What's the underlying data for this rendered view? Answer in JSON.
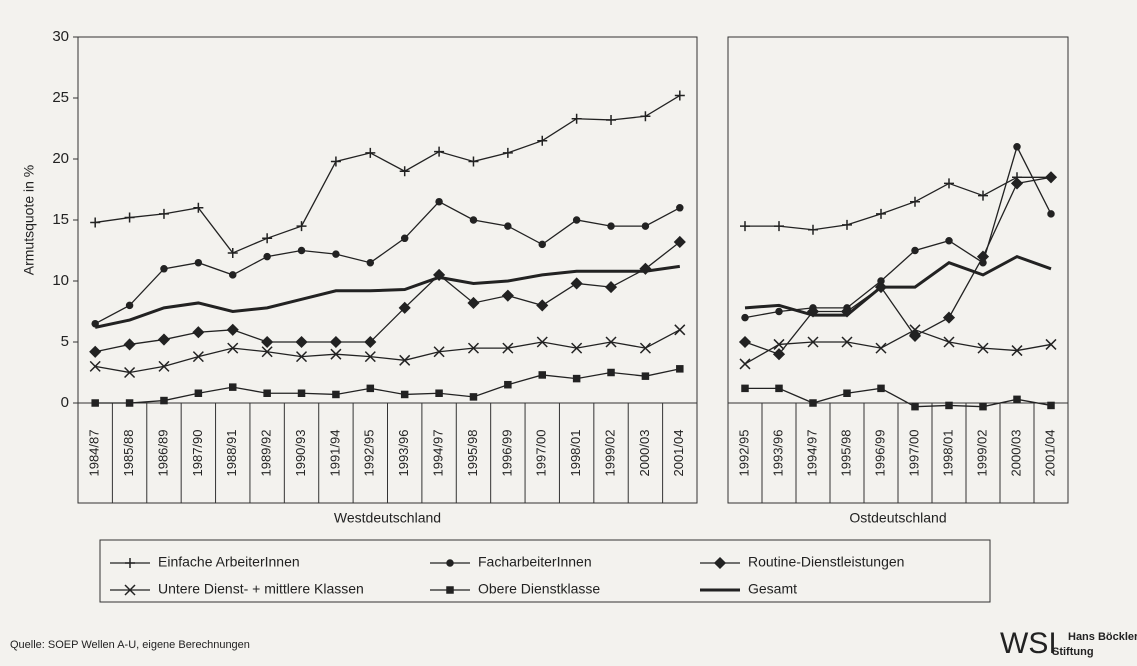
{
  "chart_data": [
    {
      "type": "line",
      "ylabel": "Armutsquote in %",
      "xlabel": "Westdeutschland",
      "categories": [
        "1984/87",
        "1985/88",
        "1986/89",
        "1987/90",
        "1988/91",
        "1989/92",
        "1990/93",
        "1991/94",
        "1992/95",
        "1993/96",
        "1994/97",
        "1995/98",
        "1996/99",
        "1997/00",
        "1998/01",
        "1999/02",
        "2000/03",
        "2001/04"
      ],
      "ylim": [
        0,
        30
      ],
      "yticks": [
        0,
        5,
        10,
        15,
        20,
        25,
        30
      ],
      "series": [
        {
          "name": "Einfache ArbeiterInnen",
          "color": "#222222",
          "marker": "plus",
          "values": [
            14.8,
            15.2,
            15.5,
            16,
            12.3,
            13.5,
            14.5,
            19.8,
            20.5,
            19,
            20.6,
            19.8,
            20.5,
            21.5,
            23.3,
            23.2,
            23.5,
            25.2
          ]
        },
        {
          "name": "FacharbeiterInnen",
          "color": "#222222",
          "marker": "dot",
          "values": [
            6.5,
            8,
            11,
            11.5,
            10.5,
            12,
            12.5,
            12.2,
            11.5,
            13.5,
            16.5,
            15,
            14.5,
            13,
            15,
            14.5,
            14.5,
            16
          ]
        },
        {
          "name": "Routine-Dienstleistungen",
          "color": "#222222",
          "marker": "diamond",
          "values": [
            4.2,
            4.8,
            5.2,
            5.8,
            6,
            5,
            5,
            5,
            5,
            7.8,
            10.5,
            8.2,
            8.8,
            8,
            9.8,
            9.5,
            11,
            13.2
          ]
        },
        {
          "name": "Untere Dienst- + mittlere Klassen",
          "color": "#222222",
          "marker": "x",
          "values": [
            3,
            2.5,
            3,
            3.8,
            4.5,
            4.2,
            3.8,
            4,
            3.8,
            3.5,
            4.2,
            4.5,
            4.5,
            5,
            4.5,
            5,
            4.5,
            6
          ]
        },
        {
          "name": "Obere Dienstklasse",
          "color": "#222222",
          "marker": "square",
          "values": [
            0,
            0,
            0.2,
            0.8,
            1.3,
            0.8,
            0.8,
            0.7,
            1.2,
            0.7,
            0.8,
            0.5,
            1.5,
            2.3,
            2,
            2.5,
            2.2,
            2.8
          ]
        },
        {
          "name": "Gesamt",
          "color": "#222222",
          "marker": "none",
          "values": [
            6.2,
            6.8,
            7.8,
            8.2,
            7.5,
            7.8,
            8.5,
            9.2,
            9.2,
            9.3,
            10.3,
            9.8,
            10,
            10.5,
            10.8,
            10.8,
            10.8,
            11.2
          ]
        }
      ]
    },
    {
      "type": "line",
      "xlabel": "Ostdeutschland",
      "categories": [
        "1992/95",
        "1993/96",
        "1994/97",
        "1995/98",
        "1996/99",
        "1997/00",
        "1998/01",
        "1999/02",
        "2000/03",
        "2001/04"
      ],
      "ylim": [
        0,
        30
      ],
      "series": [
        {
          "color": "#222222",
          "marker": "plus",
          "values": [
            14.5,
            14.5,
            14.2,
            14.6,
            15.5,
            16.5,
            18,
            17,
            18.5,
            18.5
          ]
        },
        {
          "color": "#222222",
          "marker": "dot",
          "values": [
            7,
            7.5,
            7.8,
            7.8,
            10,
            12.5,
            13.3,
            11.5,
            21,
            15.5
          ]
        },
        {
          "color": "#222222",
          "marker": "diamond",
          "values": [
            5,
            4,
            7.5,
            7.5,
            9.5,
            5.5,
            7,
            12,
            18,
            18.5
          ]
        },
        {
          "color": "#222222",
          "marker": "x",
          "values": [
            3.2,
            4.8,
            5,
            5,
            4.5,
            6,
            5,
            4.5,
            4.3,
            4.8
          ]
        },
        {
          "color": "#222222",
          "marker": "square",
          "values": [
            1.2,
            1.2,
            0,
            0.8,
            1.2,
            -0.3,
            -0.2,
            -0.3,
            0.3,
            -0.2
          ]
        },
        {
          "color": "#222222",
          "marker": "none",
          "values": [
            7.8,
            8,
            7.2,
            7.2,
            9.5,
            9.5,
            11.5,
            10.5,
            12,
            11
          ]
        }
      ]
    }
  ],
  "source": "Quelle: SOEP Wellen A-U, eigene Berechnungen",
  "logo": {
    "name": "WSI",
    "line1": "Hans Böckler",
    "line2": "Stiftung"
  }
}
